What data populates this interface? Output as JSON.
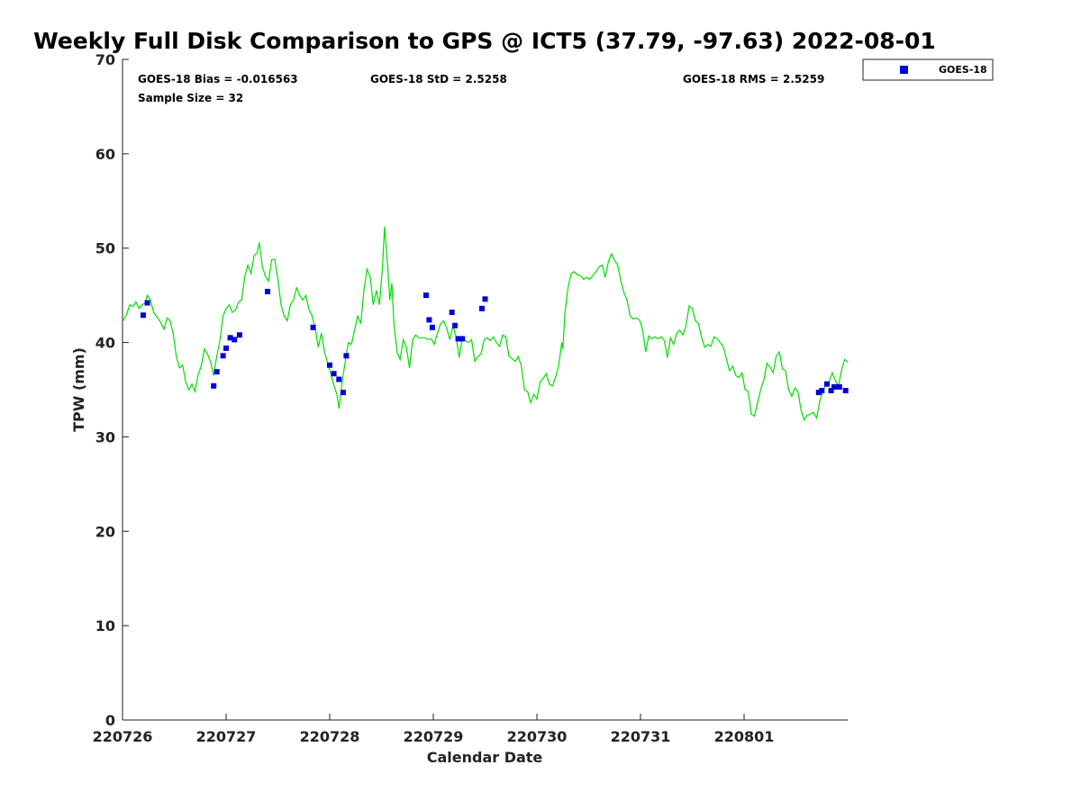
{
  "chart_data": {
    "type": "scatter",
    "title": "Weekly Full Disk Comparison to GPS @ ICT5 (37.79, -97.63) 2022-08-01",
    "xlabel": "Calendar Date",
    "ylabel": "TPW (mm)",
    "xlim": [
      0,
      7
    ],
    "ylim": [
      0,
      70
    ],
    "x_ticks": [
      0,
      1,
      2,
      3,
      4,
      5,
      6
    ],
    "x_tick_labels": [
      "220726",
      "220727",
      "220728",
      "220729",
      "220730",
      "220731",
      "220801"
    ],
    "y_ticks": [
      0,
      10,
      20,
      30,
      40,
      50,
      60,
      70
    ],
    "y_tick_labels": [
      "0",
      "10",
      "20",
      "30",
      "40",
      "50",
      "60",
      "70"
    ],
    "grid": false,
    "legend_position": "top-right",
    "stats": {
      "bias": "GOES-18 Bias = -0.016563",
      "std": "GOES-18 StD = 2.5258",
      "rms": "GOES-18 RMS = 2.5259",
      "sample_size": "Sample Size = 32"
    },
    "series": [
      {
        "name": "GPS",
        "kind": "line",
        "color": "#00e000",
        "points": [
          [
            0.0,
            42.2
          ],
          [
            0.04,
            43.0
          ],
          [
            0.07,
            44.0
          ],
          [
            0.1,
            43.8
          ],
          [
            0.13,
            44.3
          ],
          [
            0.16,
            43.6
          ],
          [
            0.19,
            44.0
          ],
          [
            0.22,
            44.2
          ],
          [
            0.24,
            45.0
          ],
          [
            0.27,
            44.5
          ],
          [
            0.3,
            43.2
          ],
          [
            0.34,
            42.6
          ],
          [
            0.37,
            42.1
          ],
          [
            0.4,
            41.4
          ],
          [
            0.43,
            42.6
          ],
          [
            0.46,
            42.3
          ],
          [
            0.49,
            40.9
          ],
          [
            0.52,
            38.5
          ],
          [
            0.55,
            37.3
          ],
          [
            0.58,
            37.6
          ],
          [
            0.61,
            35.8
          ],
          [
            0.64,
            35.0
          ],
          [
            0.67,
            35.6
          ],
          [
            0.7,
            34.8
          ],
          [
            0.73,
            36.6
          ],
          [
            0.76,
            37.5
          ],
          [
            0.79,
            39.3
          ],
          [
            0.82,
            38.8
          ],
          [
            0.85,
            37.9
          ],
          [
            0.88,
            36.5
          ],
          [
            0.91,
            38.6
          ],
          [
            0.94,
            40.2
          ],
          [
            0.97,
            42.8
          ],
          [
            1.0,
            43.6
          ],
          [
            1.03,
            44.0
          ],
          [
            1.06,
            43.2
          ],
          [
            1.09,
            43.4
          ],
          [
            1.12,
            44.3
          ],
          [
            1.15,
            44.5
          ],
          [
            1.18,
            47.0
          ],
          [
            1.21,
            48.2
          ],
          [
            1.24,
            47.3
          ],
          [
            1.27,
            49.2
          ],
          [
            1.3,
            49.5
          ],
          [
            1.32,
            50.6
          ],
          [
            1.35,
            48.0
          ],
          [
            1.38,
            47.0
          ],
          [
            1.41,
            46.5
          ],
          [
            1.44,
            48.8
          ],
          [
            1.47,
            48.8
          ],
          [
            1.5,
            46.7
          ],
          [
            1.53,
            44.0
          ],
          [
            1.56,
            42.8
          ],
          [
            1.59,
            42.3
          ],
          [
            1.62,
            44.0
          ],
          [
            1.65,
            44.5
          ],
          [
            1.68,
            45.8
          ],
          [
            1.71,
            45.0
          ],
          [
            1.74,
            44.5
          ],
          [
            1.77,
            45.0
          ],
          [
            1.8,
            43.5
          ],
          [
            1.83,
            42.8
          ],
          [
            1.86,
            41.5
          ],
          [
            1.89,
            39.5
          ],
          [
            1.92,
            41.0
          ],
          [
            1.95,
            39.0
          ],
          [
            1.98,
            37.8
          ],
          [
            2.01,
            36.7
          ],
          [
            2.04,
            35.5
          ],
          [
            2.07,
            34.5
          ],
          [
            2.09,
            33.0
          ],
          [
            2.12,
            35.8
          ],
          [
            2.15,
            38.0
          ],
          [
            2.18,
            40.0
          ],
          [
            2.21,
            39.8
          ],
          [
            2.24,
            41.3
          ],
          [
            2.27,
            42.8
          ],
          [
            2.3,
            42.0
          ],
          [
            2.33,
            45.5
          ],
          [
            2.36,
            47.8
          ],
          [
            2.39,
            47.0
          ],
          [
            2.42,
            44.0
          ],
          [
            2.45,
            45.5
          ],
          [
            2.48,
            44.0
          ],
          [
            2.51,
            48.0
          ],
          [
            2.53,
            52.3
          ],
          [
            2.56,
            48.0
          ],
          [
            2.58,
            44.5
          ],
          [
            2.6,
            46.3
          ],
          [
            2.62,
            42.0
          ],
          [
            2.65,
            39.0
          ],
          [
            2.68,
            38.2
          ],
          [
            2.71,
            40.3
          ],
          [
            2.74,
            39.5
          ],
          [
            2.77,
            37.3
          ],
          [
            2.8,
            40.3
          ],
          [
            2.83,
            40.8
          ],
          [
            2.86,
            40.5
          ],
          [
            2.89,
            40.5
          ],
          [
            2.92,
            40.5
          ],
          [
            2.95,
            40.3
          ],
          [
            2.98,
            40.4
          ],
          [
            3.01,
            39.8
          ],
          [
            3.04,
            41.0
          ],
          [
            3.07,
            42.0
          ],
          [
            3.1,
            42.3
          ],
          [
            3.13,
            41.5
          ],
          [
            3.16,
            40.3
          ],
          [
            3.19,
            41.8
          ],
          [
            3.22,
            40.6
          ],
          [
            3.25,
            38.4
          ],
          [
            3.28,
            40.5
          ],
          [
            3.31,
            40.2
          ],
          [
            3.34,
            40.0
          ],
          [
            3.37,
            40.3
          ],
          [
            3.4,
            38.0
          ],
          [
            3.43,
            38.5
          ],
          [
            3.46,
            38.8
          ],
          [
            3.49,
            40.3
          ],
          [
            3.52,
            40.5
          ],
          [
            3.55,
            40.2
          ],
          [
            3.58,
            40.6
          ],
          [
            3.61,
            40.0
          ],
          [
            3.64,
            39.6
          ],
          [
            3.67,
            40.8
          ],
          [
            3.7,
            40.6
          ],
          [
            3.73,
            38.6
          ],
          [
            3.76,
            38.3
          ],
          [
            3.79,
            38.0
          ],
          [
            3.82,
            38.5
          ],
          [
            3.85,
            37.5
          ],
          [
            3.88,
            35.0
          ],
          [
            3.91,
            34.8
          ],
          [
            3.94,
            33.6
          ],
          [
            3.97,
            34.5
          ],
          [
            4.0,
            34.0
          ],
          [
            4.03,
            35.8
          ],
          [
            4.06,
            36.2
          ],
          [
            4.09,
            36.7
          ],
          [
            4.12,
            35.6
          ],
          [
            4.15,
            35.4
          ],
          [
            4.18,
            36.3
          ],
          [
            4.21,
            37.5
          ],
          [
            4.24,
            40.0
          ],
          [
            4.25,
            39.3
          ],
          [
            4.27,
            43.0
          ],
          [
            4.3,
            45.8
          ],
          [
            4.33,
            47.3
          ],
          [
            4.36,
            47.5
          ],
          [
            4.39,
            47.2
          ],
          [
            4.42,
            47.1
          ],
          [
            4.45,
            46.7
          ],
          [
            4.48,
            46.9
          ],
          [
            4.51,
            46.7
          ],
          [
            4.54,
            47.1
          ],
          [
            4.57,
            47.5
          ],
          [
            4.6,
            48.0
          ],
          [
            4.63,
            48.2
          ],
          [
            4.66,
            46.9
          ],
          [
            4.69,
            48.6
          ],
          [
            4.72,
            49.4
          ],
          [
            4.75,
            48.7
          ],
          [
            4.78,
            48.2
          ],
          [
            4.81,
            46.6
          ],
          [
            4.84,
            45.3
          ],
          [
            4.87,
            44.5
          ],
          [
            4.9,
            42.8
          ],
          [
            4.93,
            42.5
          ],
          [
            4.96,
            42.6
          ],
          [
            4.99,
            42.4
          ],
          [
            5.02,
            41.4
          ],
          [
            5.05,
            39.0
          ],
          [
            5.08,
            40.7
          ],
          [
            5.11,
            40.4
          ],
          [
            5.14,
            40.6
          ],
          [
            5.17,
            40.4
          ],
          [
            5.2,
            40.6
          ],
          [
            5.23,
            40.2
          ],
          [
            5.26,
            38.4
          ],
          [
            5.29,
            40.5
          ],
          [
            5.32,
            39.8
          ],
          [
            5.35,
            41.0
          ],
          [
            5.38,
            41.3
          ],
          [
            5.41,
            40.8
          ],
          [
            5.44,
            41.8
          ],
          [
            5.47,
            43.9
          ],
          [
            5.5,
            43.6
          ],
          [
            5.53,
            42.3
          ],
          [
            5.56,
            42.0
          ],
          [
            5.59,
            40.5
          ],
          [
            5.62,
            39.5
          ],
          [
            5.65,
            39.8
          ],
          [
            5.68,
            39.6
          ],
          [
            5.71,
            40.6
          ],
          [
            5.74,
            40.4
          ],
          [
            5.77,
            40.0
          ],
          [
            5.8,
            39.5
          ],
          [
            5.83,
            38.2
          ],
          [
            5.86,
            37.0
          ],
          [
            5.89,
            37.5
          ],
          [
            5.92,
            36.5
          ],
          [
            5.95,
            36.3
          ],
          [
            5.98,
            36.8
          ],
          [
            6.01,
            35.0
          ],
          [
            6.04,
            34.8
          ],
          [
            6.07,
            32.4
          ],
          [
            6.1,
            32.2
          ],
          [
            6.13,
            33.6
          ],
          [
            6.16,
            35.0
          ],
          [
            6.19,
            36.0
          ],
          [
            6.22,
            37.8
          ],
          [
            6.25,
            37.4
          ],
          [
            6.28,
            36.8
          ],
          [
            6.31,
            38.5
          ],
          [
            6.34,
            39.0
          ],
          [
            6.37,
            37.2
          ],
          [
            6.4,
            37.0
          ],
          [
            6.43,
            35.0
          ],
          [
            6.46,
            34.3
          ],
          [
            6.49,
            35.2
          ],
          [
            6.52,
            34.8
          ],
          [
            6.55,
            32.8
          ],
          [
            6.58,
            31.8
          ],
          [
            6.61,
            32.3
          ],
          [
            6.64,
            32.4
          ],
          [
            6.67,
            32.6
          ],
          [
            6.7,
            32.0
          ],
          [
            6.73,
            33.8
          ],
          [
            6.76,
            34.8
          ],
          [
            6.79,
            35.6
          ],
          [
            6.82,
            35.8
          ],
          [
            6.85,
            36.8
          ],
          [
            6.88,
            36.0
          ],
          [
            6.91,
            35.4
          ],
          [
            6.94,
            37.0
          ],
          [
            6.97,
            38.2
          ],
          [
            7.0,
            37.9
          ]
        ]
      },
      {
        "name": "GOES-18",
        "kind": "marker",
        "color": "#0000dd",
        "points": [
          [
            0.2,
            42.9
          ],
          [
            0.24,
            44.2
          ],
          [
            0.88,
            35.4
          ],
          [
            0.91,
            36.9
          ],
          [
            0.97,
            38.6
          ],
          [
            1.0,
            39.4
          ],
          [
            1.04,
            40.5
          ],
          [
            1.08,
            40.3
          ],
          [
            1.13,
            40.8
          ],
          [
            1.4,
            45.4
          ],
          [
            1.84,
            41.6
          ],
          [
            2.0,
            37.6
          ],
          [
            2.04,
            36.7
          ],
          [
            2.09,
            36.1
          ],
          [
            2.13,
            34.7
          ],
          [
            2.16,
            38.6
          ],
          [
            2.93,
            45.0
          ],
          [
            2.96,
            42.4
          ],
          [
            2.99,
            41.6
          ],
          [
            3.18,
            43.2
          ],
          [
            3.21,
            41.8
          ],
          [
            3.24,
            40.4
          ],
          [
            3.28,
            40.4
          ],
          [
            3.47,
            43.6
          ],
          [
            3.5,
            44.6
          ],
          [
            6.72,
            34.7
          ],
          [
            6.75,
            34.9
          ],
          [
            6.8,
            35.6
          ],
          [
            6.84,
            34.9
          ],
          [
            6.87,
            35.3
          ],
          [
            6.92,
            35.3
          ],
          [
            6.98,
            34.9
          ]
        ]
      }
    ],
    "legend": [
      {
        "label": "GOES-18",
        "color": "#0000dd"
      }
    ]
  }
}
